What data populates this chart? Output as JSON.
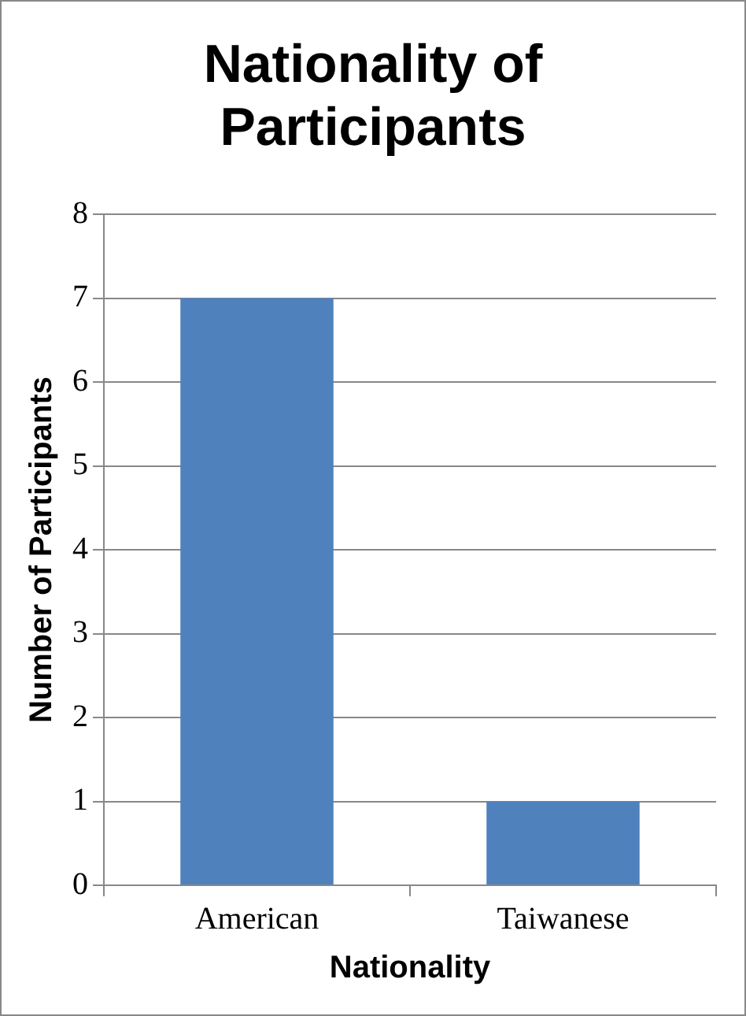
{
  "chart_data": {
    "type": "bar",
    "title": "Nationality of Participants",
    "xlabel": "Nationality",
    "ylabel": "Number of Participants",
    "categories": [
      "American",
      "Taiwanese"
    ],
    "values": [
      7,
      1
    ],
    "color": "#4f81bd",
    "ylim": [
      0,
      8
    ],
    "yticks": [
      0,
      1,
      2,
      3,
      4,
      5,
      6,
      7,
      8
    ],
    "grid": "y",
    "legend": false
  }
}
